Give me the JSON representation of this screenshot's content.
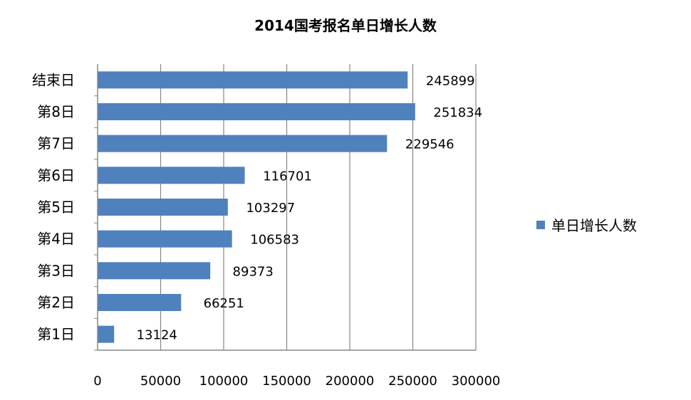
{
  "chart_data": {
    "type": "bar",
    "orientation": "horizontal",
    "title": "2014国考报名单日增长人数",
    "categories": [
      "第1日",
      "第2日",
      "第3日",
      "第4日",
      "第5日",
      "第6日",
      "第7日",
      "第8日",
      "结束日"
    ],
    "series": [
      {
        "name": "单日增长人数",
        "color": "#4F81BD",
        "values": [
          13124,
          66251,
          89373,
          106583,
          103297,
          116701,
          229546,
          251834,
          245899
        ],
        "labels": [
          "13124",
          "66251",
          "89373",
          "106583",
          "103297",
          "116701",
          "229546",
          "251834",
          "245899"
        ]
      }
    ],
    "xlim": [
      0,
      300000
    ],
    "xticks": [
      "0",
      "50000",
      "100000",
      "150000",
      "200000",
      "250000",
      "300000"
    ],
    "grid": "vertical",
    "legend": "right"
  }
}
